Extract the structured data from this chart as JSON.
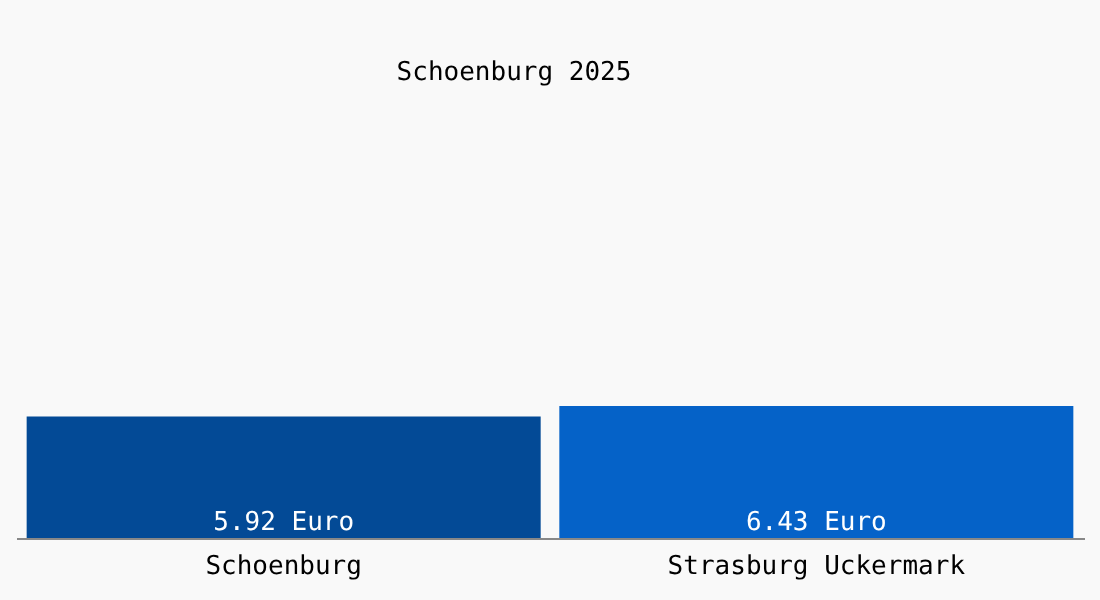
{
  "chart_data": {
    "type": "bar",
    "title": "Schoenburg 2025",
    "categories": [
      "Schoenburg",
      "Strasburg Uckermark"
    ],
    "values": [
      5.92,
      6.43
    ],
    "colors": [
      "#034a96",
      "#0562c8"
    ],
    "value_labels": [
      "5.92 Euro",
      "6.43 Euro"
    ]
  }
}
